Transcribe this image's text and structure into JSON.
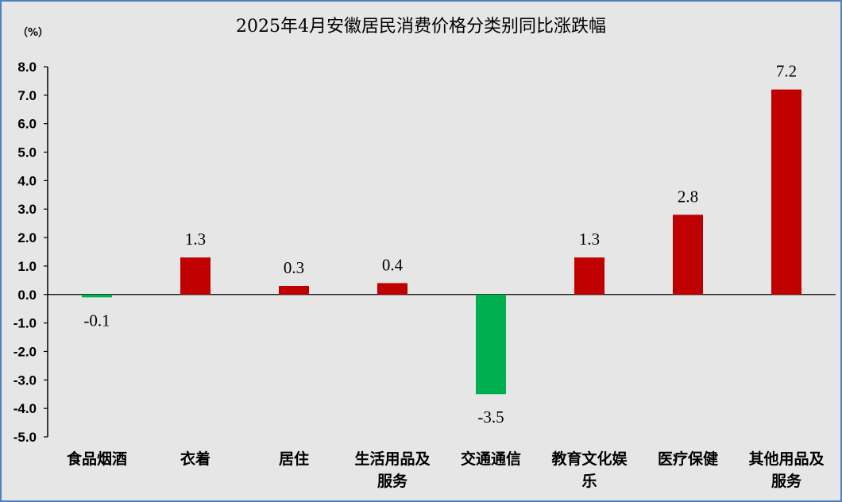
{
  "chart_data": {
    "type": "bar",
    "title": "2025年4月安徽居民消费价格分类别同比涨跌幅",
    "unit_label": "（%）",
    "categories": [
      [
        "食品烟酒"
      ],
      [
        "衣着"
      ],
      [
        "居住"
      ],
      [
        "生活用品及",
        "服务"
      ],
      [
        "交通通信"
      ],
      [
        "教育文化娱",
        "乐"
      ],
      [
        "医疗保健"
      ],
      [
        "其他用品及",
        "服务"
      ]
    ],
    "values": [
      -0.1,
      1.3,
      0.3,
      0.4,
      -3.5,
      1.3,
      2.8,
      7.2
    ],
    "value_labels": [
      "-0.1",
      "1.3",
      "0.3",
      "0.4",
      "-3.5",
      "1.3",
      "2.8",
      "7.2"
    ],
    "ylim": [
      -5.0,
      8.0
    ],
    "yticks": [
      "8.0",
      "7.0",
      "6.0",
      "5.0",
      "4.0",
      "3.0",
      "2.0",
      "1.0",
      "0.0",
      "-1.0",
      "-2.0",
      "-3.0",
      "-4.0",
      "-5.0"
    ],
    "colors": {
      "positive": "#c00000",
      "negative": "#00b050",
      "background": "#e6e6e6",
      "border": "#4f81bd"
    },
    "grid": false,
    "legend": "none"
  }
}
